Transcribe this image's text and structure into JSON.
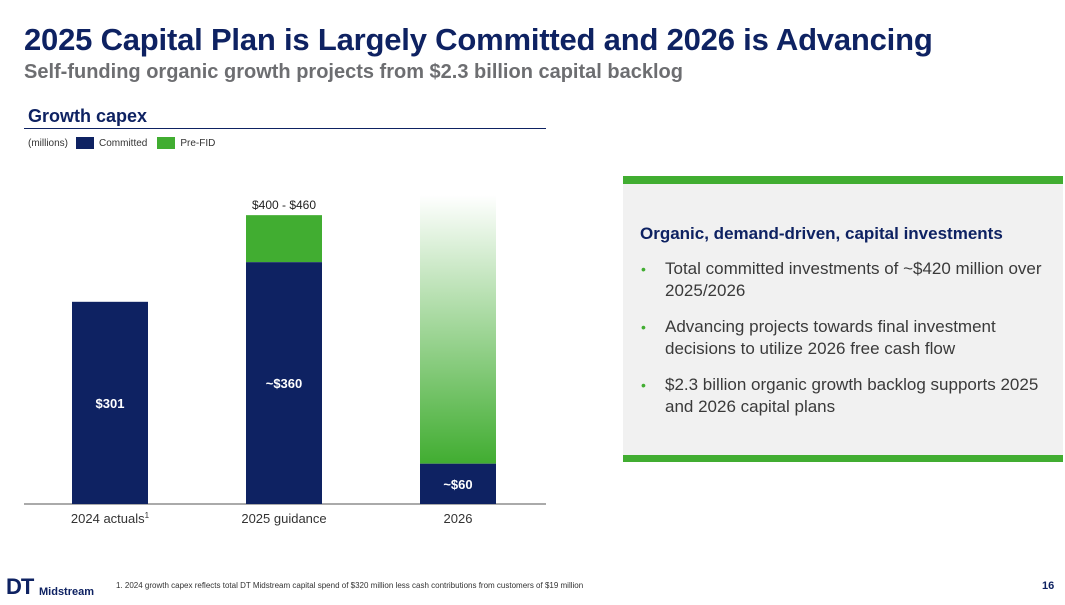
{
  "slide": {
    "title": "2025 Capital Plan is Largely Committed and 2026 is Advancing",
    "subtitle": "Self-funding organic growth projects from $2.3 billion capital backlog",
    "page_number": "16"
  },
  "section": {
    "title": "Growth capex",
    "units": "(millions)"
  },
  "legend": [
    {
      "label": "Committed",
      "color": "#0e2262"
    },
    {
      "label": "Pre-FID",
      "color": "#41ad31"
    }
  ],
  "chart_data": {
    "type": "bar",
    "stacked": true,
    "title": "Growth capex",
    "ylabel": "(millions)",
    "categories": [
      "2024 actuals",
      "2025 guidance",
      "2026"
    ],
    "category_superscripts": [
      "1",
      "",
      ""
    ],
    "ylim": [
      0,
      460
    ],
    "series": [
      {
        "name": "Committed",
        "color": "#0e2262",
        "values": [
          301,
          360,
          60
        ]
      },
      {
        "name": "Pre-FID",
        "color": "#41ad31",
        "values": [
          0,
          70,
          400
        ]
      }
    ],
    "bar_labels": [
      "$301",
      "~$360",
      "~$60"
    ],
    "range_labels": [
      "",
      "$400 - $460",
      ""
    ],
    "gradient_fade": [
      false,
      false,
      true
    ]
  },
  "box": {
    "heading": "Organic, demand-driven, capital investments",
    "bullets": [
      "Total committed investments of ~$420 million over 2025/2026",
      "Advancing projects towards final investment decisions to utilize 2026 free cash flow",
      "$2.3 billion organic growth backlog supports 2025 and 2026 capital plans"
    ],
    "accent_color": "#41ad31"
  },
  "footer": {
    "logo_mark": "DT",
    "logo_text": "Midstream",
    "footnote": "1.   2024 growth capex reflects total DT Midstream capital spend of $320 million less cash contributions from customers of $19 million"
  }
}
